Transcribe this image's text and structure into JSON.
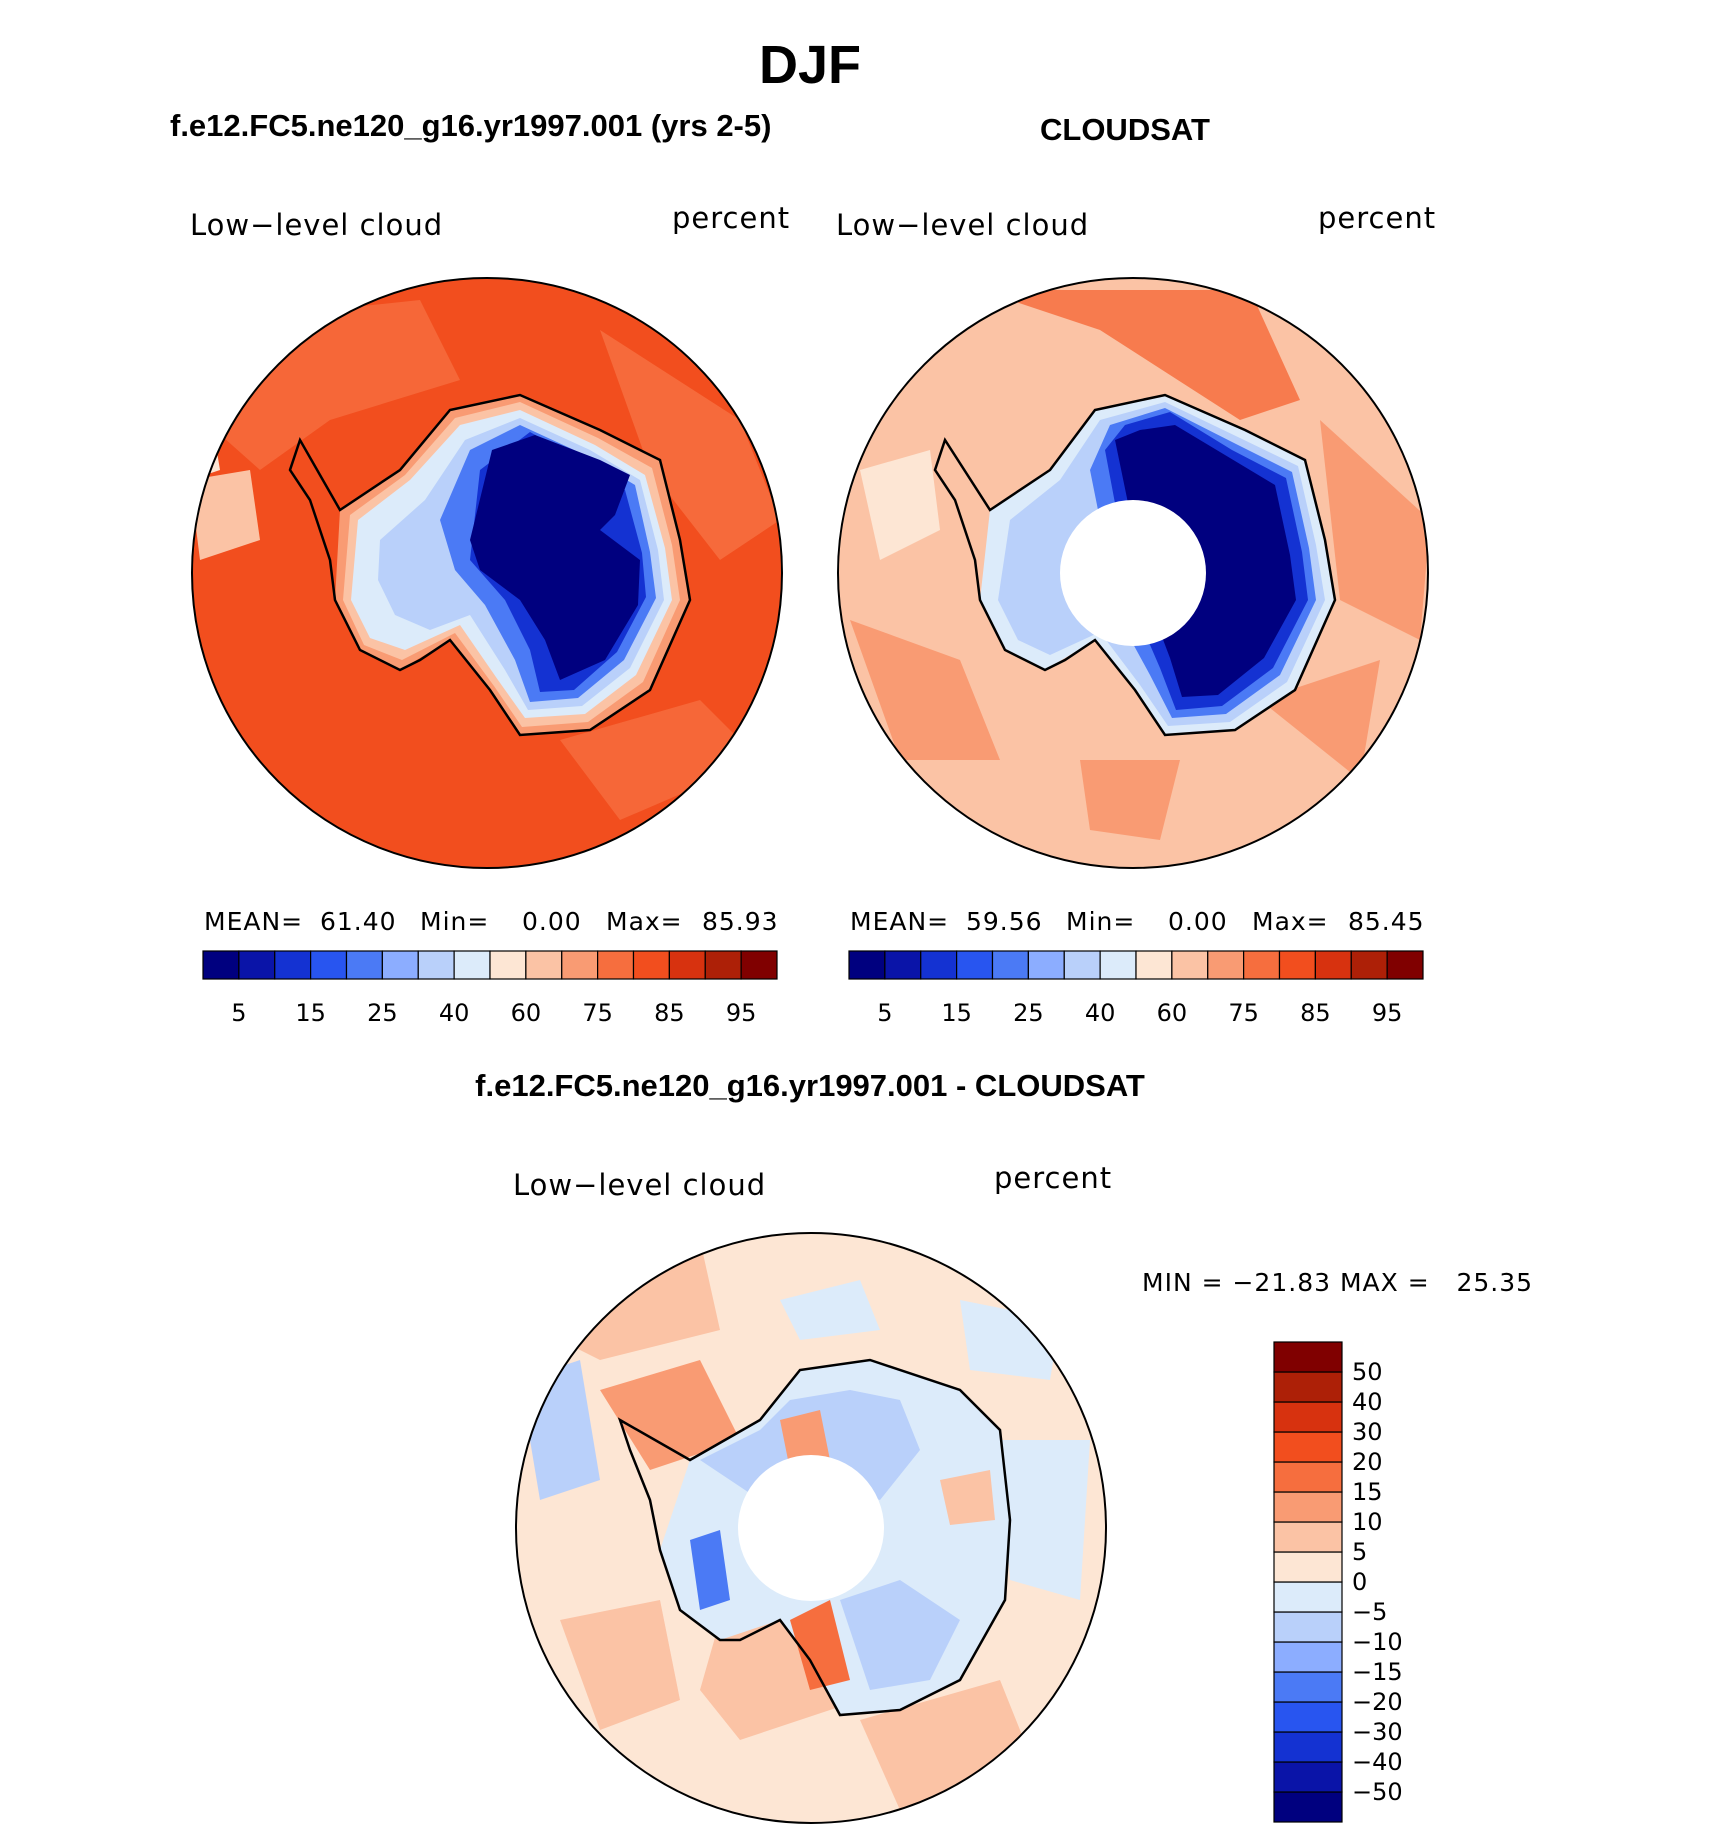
{
  "main_title": "DJF",
  "panels": [
    {
      "title": "f.e12.FC5.ne120_g16.yr1997.001 (yrs 2-5)",
      "left_label": "Low−level cloud",
      "right_label": "percent",
      "stats": {
        "mean_label": "MEAN=",
        "mean": "61.40",
        "min_label": "Min=",
        "min": "0.00",
        "max_label": "Max=",
        "max": "85.93"
      }
    },
    {
      "title": "CLOUDSAT",
      "left_label": "Low−level cloud",
      "right_label": "percent",
      "stats": {
        "mean_label": "MEAN=",
        "mean": "59.56",
        "min_label": "Min=",
        "min": "0.00",
        "max_label": "Max=",
        "max": "85.45"
      }
    },
    {
      "title": "f.e12.FC5.ne120_g16.yr1997.001 - CLOUDSAT",
      "left_label": "Low−level cloud",
      "right_label": "percent",
      "minmax": "MIN = −21.83 MAX =   25.35"
    }
  ],
  "colorbar_abs": {
    "colors": [
      "#00007f",
      "#0a14a8",
      "#1432d2",
      "#2855f0",
      "#4b7af5",
      "#8cadff",
      "#b9d0fa",
      "#dcebfa",
      "#fde6d4",
      "#fbc3a5",
      "#f99b73",
      "#f66e3e",
      "#f24e1e",
      "#d7320f",
      "#ad2007",
      "#800000"
    ],
    "tick_labels": [
      "5",
      "15",
      "25",
      "40",
      "60",
      "75",
      "85",
      "95"
    ]
  },
  "colorbar_diff": {
    "colors": [
      "#00007f",
      "#0a14a8",
      "#1432d2",
      "#2855f0",
      "#4b7af5",
      "#8cadff",
      "#b9d0fa",
      "#dcebfa",
      "#fde6d4",
      "#fbc3a5",
      "#f99b73",
      "#f66e3e",
      "#f24e1e",
      "#d7320f",
      "#ad2007",
      "#800000"
    ],
    "tick_labels": [
      "−50",
      "−40",
      "−30",
      "−20",
      "−15",
      "−10",
      "−5",
      "0",
      "5",
      "10",
      "15",
      "20",
      "30",
      "40",
      "50"
    ]
  },
  "map_colors": {
    "ocean_model": "#f24e1e",
    "ocean_obs": "#fbc3a5",
    "ocean_diff": "#fde6d4",
    "ice_low": "#00007f",
    "coast": "#000000"
  }
}
